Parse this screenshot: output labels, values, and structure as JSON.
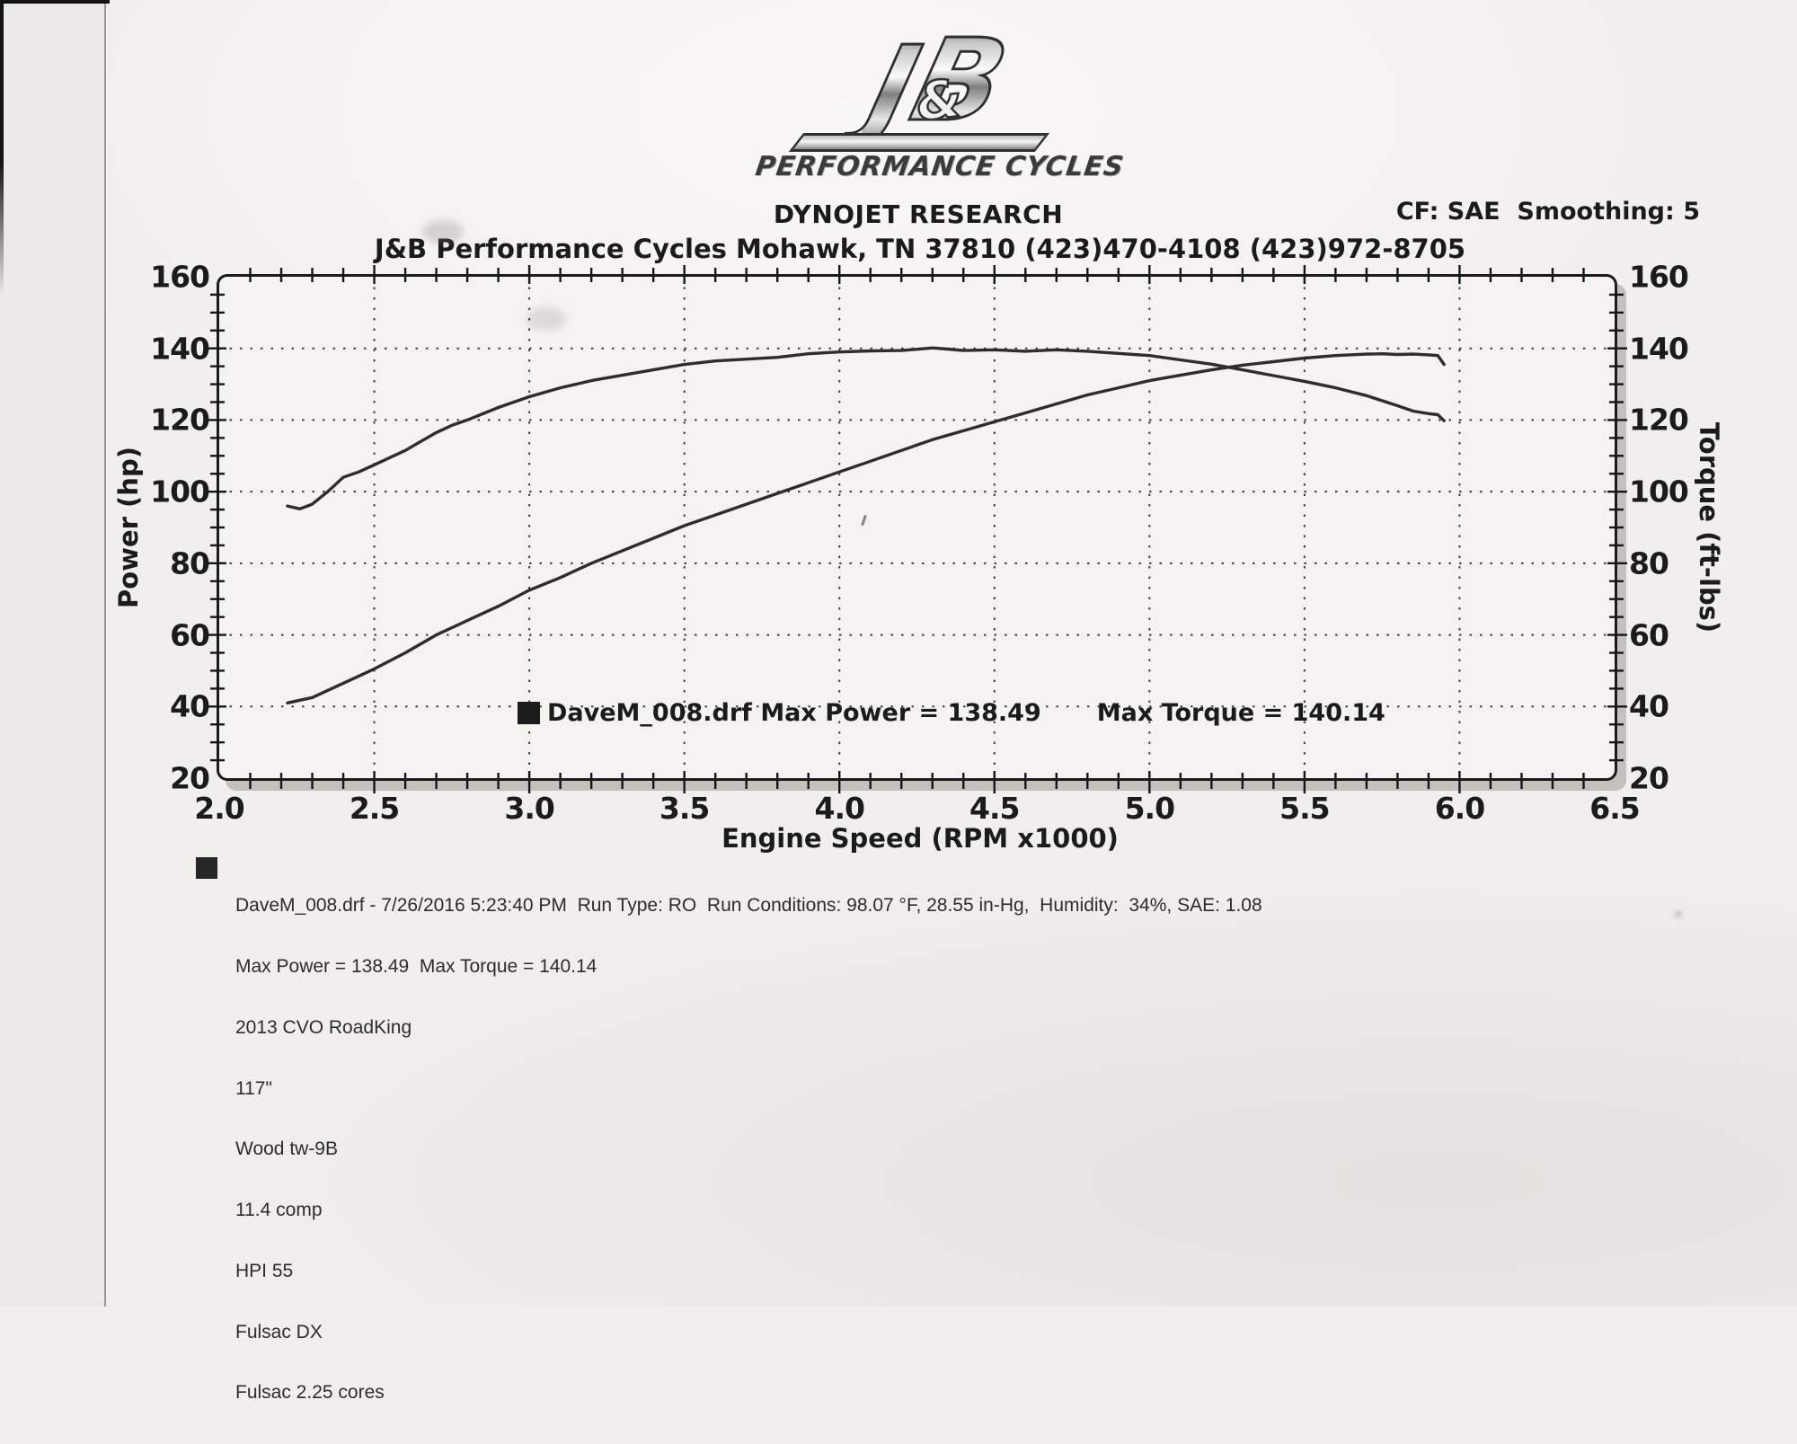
{
  "colors": {
    "ink": "#1b1b1b",
    "paper": "#f1efec",
    "curve": "#2f2d2b",
    "frame_shadow": "#9e9b96"
  },
  "header": {
    "logo": {
      "j": "J",
      "amp": "&",
      "b": "B",
      "subtitle": "PERFORMANCE CYCLES"
    },
    "title": "DYNOJET RESEARCH",
    "correction": "CF: SAE  Smoothing: 5",
    "address_line": "J&B Performance Cycles Mohawk, TN 37810 (423)470-4108 (423)972-8705"
  },
  "chart_data": {
    "type": "line",
    "title": "",
    "xlabel": "Engine Speed (RPM x1000)",
    "ylabel_left": "Power (hp)",
    "ylabel_right": "Torque (ft-lbs)",
    "xlim": [
      2.0,
      6.5
    ],
    "ylim": [
      20,
      160
    ],
    "x_ticks": [
      2.0,
      2.5,
      3.0,
      3.5,
      4.0,
      4.5,
      5.0,
      5.5,
      6.0,
      6.5
    ],
    "y_ticks": [
      160,
      140,
      120,
      100,
      80,
      60,
      40,
      20
    ],
    "x_gridlines": [
      2.5,
      3.0,
      3.5,
      4.0,
      4.5,
      5.0,
      5.5,
      6.0
    ],
    "y_gridlines": [
      140,
      120,
      100,
      80,
      60,
      40
    ],
    "grid": "dotted",
    "legend_position": "inside-bottom",
    "file": "DaveM_008.drf",
    "max_power": 138.49,
    "max_torque": 140.14,
    "legend": {
      "entries": [
        "DaveM_008.drf Max Power = 138.49",
        "Max Torque = 140.14"
      ]
    },
    "series": [
      {
        "name": "Power (hp)",
        "x": [
          2.22,
          2.3,
          2.4,
          2.5,
          2.6,
          2.7,
          2.8,
          2.9,
          3.0,
          3.1,
          3.2,
          3.3,
          3.4,
          3.5,
          3.6,
          3.7,
          3.8,
          3.9,
          4.0,
          4.1,
          4.2,
          4.3,
          4.4,
          4.5,
          4.6,
          4.7,
          4.8,
          4.9,
          5.0,
          5.1,
          5.2,
          5.3,
          5.4,
          5.5,
          5.6,
          5.7,
          5.75,
          5.8,
          5.85,
          5.9,
          5.93,
          5.95
        ],
        "values": [
          41,
          42.5,
          46.5,
          50.5,
          55,
          60,
          64,
          68,
          72.5,
          76,
          80,
          83.5,
          87,
          90.5,
          93.5,
          96.5,
          99.5,
          102.5,
          105.5,
          108.5,
          111.5,
          114.5,
          117,
          119.5,
          122,
          124.5,
          127,
          129,
          131,
          132.5,
          134,
          135.3,
          136.3,
          137.3,
          138,
          138.4,
          138.49,
          138.3,
          138.4,
          138.2,
          138,
          135.5
        ]
      },
      {
        "name": "Torque (ft-lbs)",
        "x": [
          2.22,
          2.26,
          2.3,
          2.35,
          2.4,
          2.45,
          2.5,
          2.55,
          2.6,
          2.65,
          2.7,
          2.75,
          2.8,
          2.9,
          3.0,
          3.1,
          3.2,
          3.3,
          3.4,
          3.5,
          3.6,
          3.7,
          3.8,
          3.9,
          4.0,
          4.1,
          4.2,
          4.3,
          4.35,
          4.4,
          4.5,
          4.6,
          4.7,
          4.8,
          4.9,
          5.0,
          5.1,
          5.2,
          5.3,
          5.4,
          5.5,
          5.6,
          5.7,
          5.8,
          5.85,
          5.9,
          5.93,
          5.95
        ],
        "values": [
          96,
          95.2,
          96.5,
          100,
          104,
          105.5,
          107.5,
          109.5,
          111.5,
          114,
          116.5,
          118.5,
          120,
          123.5,
          126.5,
          129,
          131,
          132.5,
          134,
          135.5,
          136.5,
          137,
          137.5,
          138.5,
          139,
          139.3,
          139.4,
          140.14,
          139.8,
          139.4,
          139.6,
          139.2,
          139.6,
          139.2,
          138.6,
          138,
          136.8,
          135.6,
          134,
          132.4,
          130.8,
          129,
          126.8,
          124,
          122.5,
          121.8,
          121.5,
          119.8
        ]
      }
    ]
  },
  "footer": {
    "lines": [
      "DaveM_008.drf - 7/26/2016 5:23:40 PM  Run Type: RO  Run Conditions: 98.07 °F, 28.55 in-Hg,  Humidity:  34%, SAE: 1.08",
      "Max Power = 138.49  Max Torque = 140.14",
      "2013 CVO RoadKing",
      "117\"",
      "Wood tw-9B",
      "11.4 comp",
      "HPI 55",
      "Fulsac DX",
      "Fulsac 2.25 cores"
    ]
  }
}
